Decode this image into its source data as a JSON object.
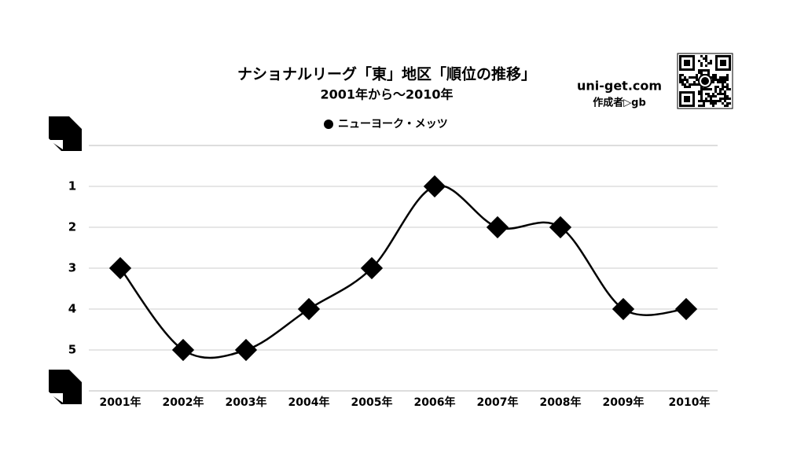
{
  "chart_data": {
    "type": "line",
    "title": "ナショナルリーグ「東」地区「順位の推移」",
    "subtitle": "2001年から〜2010年",
    "annotations": [
      "uni-get.com",
      "作成者▷gb"
    ],
    "categories": [
      "2001年",
      "2002年",
      "2003年",
      "2004年",
      "2005年",
      "2006年",
      "2007年",
      "2008年",
      "2009年",
      "2010年"
    ],
    "series": [
      {
        "name": "ニューヨーク・メッツ",
        "color": "#000000",
        "values": [
          3,
          5,
          5,
          4,
          3,
          1,
          2,
          2,
          4,
          4
        ]
      }
    ],
    "ylim": [
      0,
      6
    ],
    "yticks": [
      1,
      2,
      3,
      4,
      5
    ],
    "y_inverted": true,
    "grid": true,
    "legend": "top"
  }
}
